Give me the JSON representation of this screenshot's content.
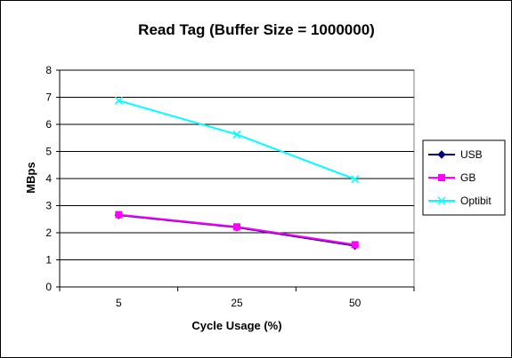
{
  "chart_data": {
    "type": "line",
    "title": "Read Tag (Buffer Size = 1000000)",
    "xlabel": "Cycle Usage (%)",
    "ylabel": "MBps",
    "categories": [
      "5",
      "25",
      "50"
    ],
    "ylim": [
      0,
      8
    ],
    "yticks": [
      0,
      1,
      2,
      3,
      4,
      5,
      6,
      7,
      8
    ],
    "grid": true,
    "legend_position": "right",
    "plot_background": "#ffffff",
    "series": [
      {
        "name": "USB",
        "values": [
          2.65,
          2.2,
          1.52
        ],
        "color": "#000080",
        "marker": "diamond"
      },
      {
        "name": "GB",
        "values": [
          2.67,
          2.22,
          1.56
        ],
        "color": "#ff00ff",
        "marker": "square"
      },
      {
        "name": "Optibit",
        "values": [
          6.88,
          5.63,
          3.98
        ],
        "color": "#00ffff",
        "marker": "x"
      }
    ]
  }
}
